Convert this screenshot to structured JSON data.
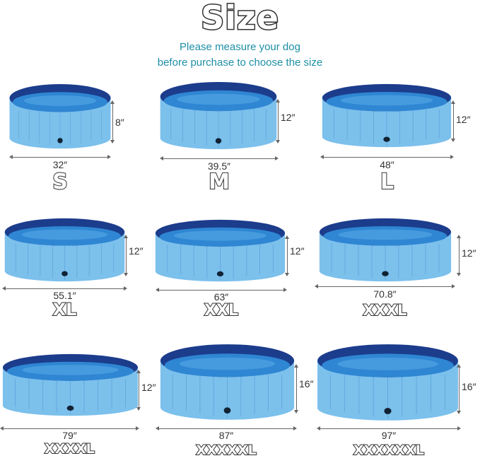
{
  "title": "Size",
  "subtitle_line1": "Please measure your dog",
  "subtitle_line2": "before purchase to choose the size",
  "colors": {
    "subtitle": "#1e8fa6",
    "pool_side": "#7cc0ec",
    "pool_rim": "#1c3c8c",
    "water": "#2f86d3"
  },
  "pools": [
    {
      "size": "S",
      "diameter": "32″",
      "height": "8″"
    },
    {
      "size": "M",
      "diameter": "39.5″",
      "height": "12″"
    },
    {
      "size": "L",
      "diameter": "48″",
      "height": "12″"
    },
    {
      "size": "XL",
      "diameter": "55.1″",
      "height": "12″"
    },
    {
      "size": "XXL",
      "diameter": "63″",
      "height": "12″"
    },
    {
      "size": "XXXL",
      "diameter": "70.8″",
      "height": "12″"
    },
    {
      "size": "XXXXL",
      "diameter": "79″",
      "height": "12″"
    },
    {
      "size": "XXXXXL",
      "diameter": "87″",
      "height": "16″"
    },
    {
      "size": "XXXXXXL",
      "diameter": "97″",
      "height": "16″"
    }
  ]
}
